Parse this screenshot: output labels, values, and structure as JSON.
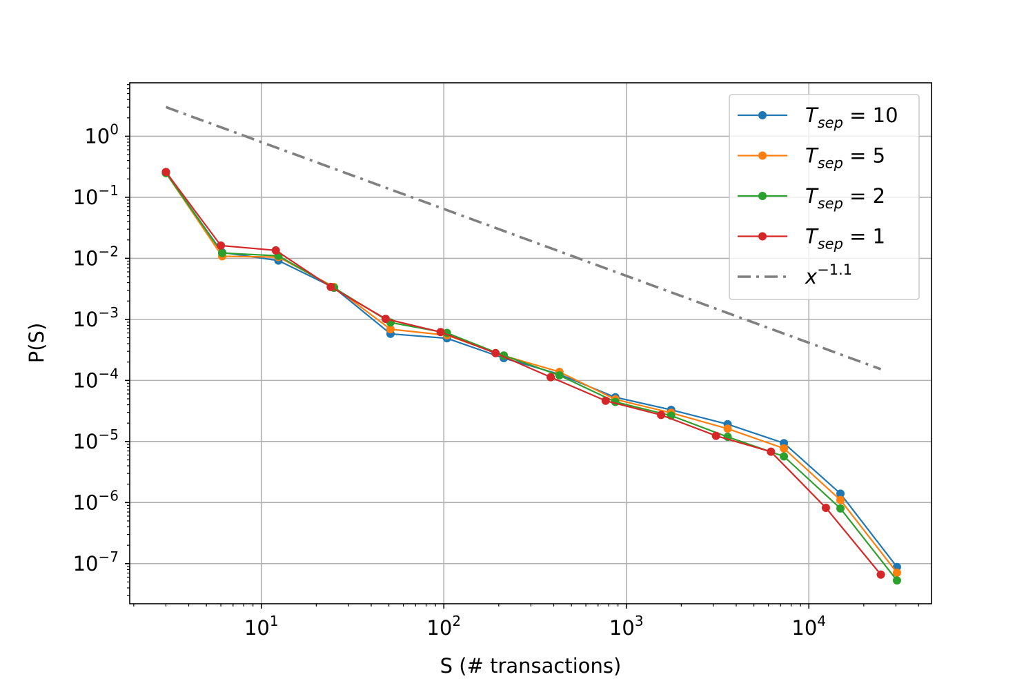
{
  "chart_data": {
    "type": "line",
    "xlabel": "S (# transactions)",
    "ylabel": "P(S)",
    "xscale": "log",
    "yscale": "log",
    "xlim": [
      1.9,
      47000
    ],
    "ylim": [
      2.2e-08,
      7.5
    ],
    "grid": true,
    "legend_position": "upper right",
    "x_ticks": [
      {
        "value": 10,
        "base": "10",
        "exp": "1"
      },
      {
        "value": 100,
        "base": "10",
        "exp": "2"
      },
      {
        "value": 1000,
        "base": "10",
        "exp": "3"
      },
      {
        "value": 10000,
        "base": "10",
        "exp": "4"
      }
    ],
    "y_ticks": [
      {
        "value": 1,
        "base": "10",
        "exp": "0"
      },
      {
        "value": 0.1,
        "base": "10",
        "exp": "−1"
      },
      {
        "value": 0.01,
        "base": "10",
        "exp": "−2"
      },
      {
        "value": 0.001,
        "base": "10",
        "exp": "−3"
      },
      {
        "value": 0.0001,
        "base": "10",
        "exp": "−4"
      },
      {
        "value": 1e-05,
        "base": "10",
        "exp": "−5"
      },
      {
        "value": 1e-06,
        "base": "10",
        "exp": "−6"
      },
      {
        "value": 1e-07,
        "base": "10",
        "exp": "−7"
      }
    ],
    "series": [
      {
        "name": "T_sep = 10",
        "label_main": "T",
        "label_sub": "sep",
        "label_rest": " = 10",
        "color": "#1f77b4",
        "marker": true,
        "x": [
          3,
          6.1,
          12.4,
          25,
          51,
          104,
          213,
          430,
          870,
          1760,
          3590,
          7300,
          14900,
          30400
        ],
        "y": [
          0.25,
          0.0125,
          0.0092,
          0.0033,
          0.00058,
          0.00049,
          0.000232,
          0.000126,
          5.3e-05,
          3.3e-05,
          1.92e-05,
          9.4e-06,
          1.4e-06,
          8.8e-08
        ]
      },
      {
        "name": "T_sep = 5",
        "label_main": "T",
        "label_sub": "sep",
        "label_rest": " = 5",
        "color": "#ff7f0e",
        "marker": true,
        "x": [
          3,
          6.1,
          12.4,
          25,
          51,
          104,
          213,
          430,
          870,
          1760,
          3590,
          7300,
          14900,
          30400
        ],
        "y": [
          0.25,
          0.0108,
          0.0105,
          0.0034,
          0.00069,
          0.00055,
          0.000255,
          0.000138,
          4.9e-05,
          2.95e-05,
          1.62e-05,
          7.7e-06,
          1.1e-06,
          7.1e-08
        ]
      },
      {
        "name": "T_sep = 2",
        "label_main": "T",
        "label_sub": "sep",
        "label_rest": " = 2",
        "color": "#2ca02c",
        "marker": true,
        "x": [
          3,
          6.1,
          12.4,
          25,
          51,
          104,
          213,
          430,
          870,
          1760,
          3590,
          7300,
          14900,
          30400
        ],
        "y": [
          0.25,
          0.0122,
          0.011,
          0.0033,
          0.00089,
          0.0006,
          0.000256,
          0.000121,
          4.45e-05,
          2.65e-05,
          1.19e-05,
          5.7e-06,
          8e-07,
          5.3e-08
        ]
      },
      {
        "name": "T_sep = 1",
        "label_main": "T",
        "label_sub": "sep",
        "label_rest": " = 1",
        "color": "#d62728",
        "marker": true,
        "x": [
          3,
          6,
          12,
          24,
          48,
          96,
          192,
          385,
          770,
          1550,
          3100,
          6200,
          12400,
          24800
        ],
        "y": [
          0.26,
          0.0162,
          0.0135,
          0.0034,
          0.00102,
          0.00062,
          0.00028,
          0.000113,
          4.65e-05,
          2.72e-05,
          1.24e-05,
          6.8e-06,
          8.2e-07,
          6.6e-08
        ]
      },
      {
        "name": "x^{-1.1}",
        "label_main": "x",
        "label_sup": "−1.1",
        "color": "#808080",
        "marker": false,
        "dash": "dashdot",
        "x": [
          3,
          24800
        ],
        "y": [
          3.0,
          0.000153
        ]
      }
    ]
  }
}
